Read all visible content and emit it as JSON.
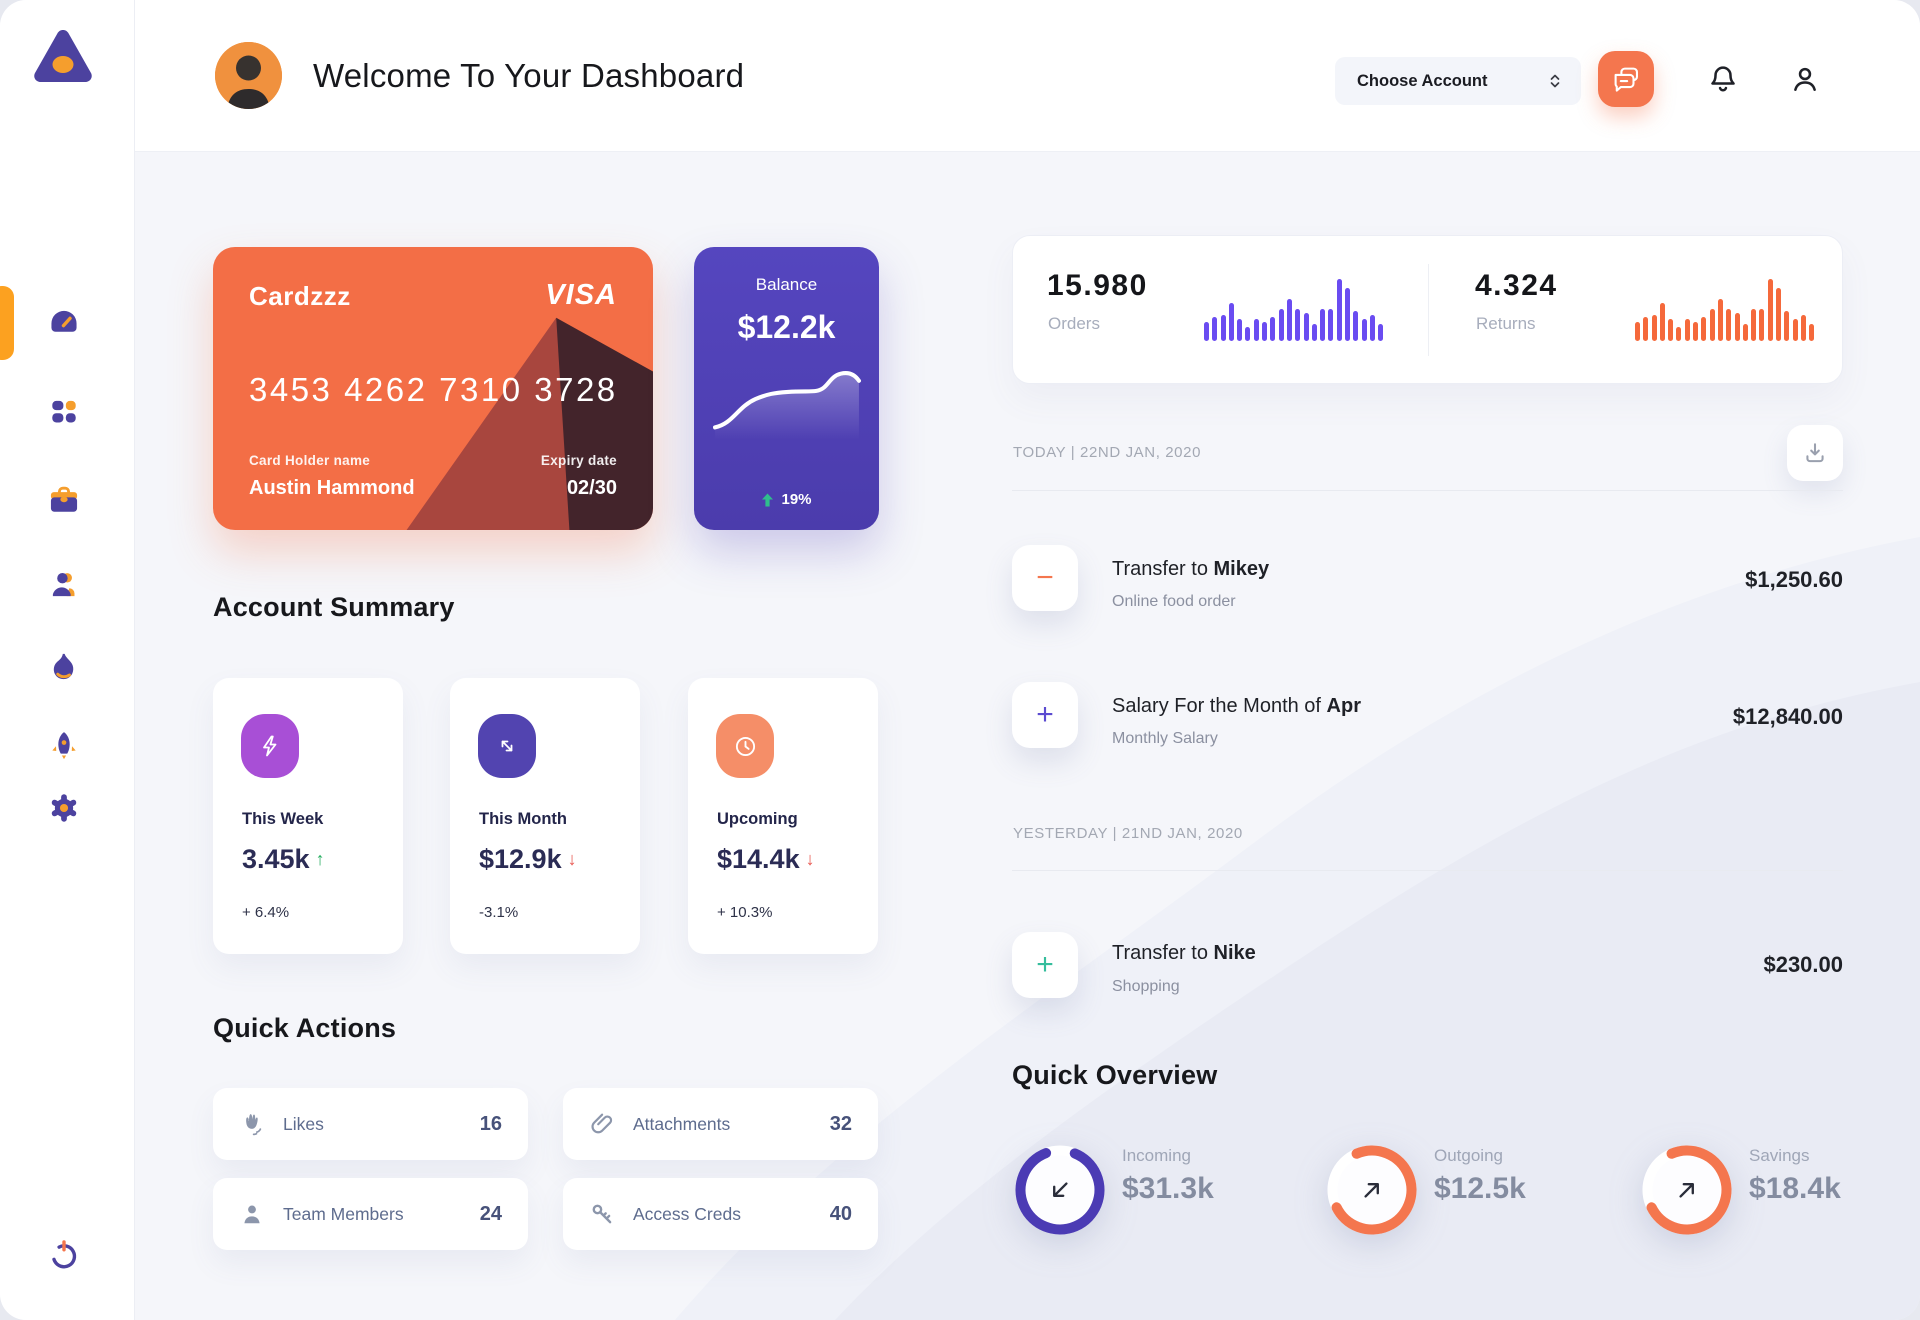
{
  "page": {
    "title": "Welcome To Your Dashboard"
  },
  "header": {
    "account_selector": {
      "label": "Choose Account",
      "icon": "chevron-up-down"
    },
    "actions": {
      "messages_icon": "chat-bubbles",
      "notifications_icon": "bell",
      "profile_icon": "person"
    }
  },
  "sidebar": {
    "logo_icon": "triangle-orb-logo",
    "items": [
      {
        "icon": "gauge-dashboard",
        "active": true
      },
      {
        "icon": "apps-grid",
        "active": false
      },
      {
        "icon": "briefcase",
        "active": false
      },
      {
        "icon": "user",
        "active": false
      },
      {
        "icon": "flame",
        "active": false
      },
      {
        "icon": "rocket",
        "active": false
      },
      {
        "icon": "gear",
        "active": false
      }
    ],
    "power_icon": "power"
  },
  "credit_card": {
    "name": "Cardzzz",
    "brand": "VISA",
    "number": "3453 4262 7310 3728",
    "holder_label": "Card Holder name",
    "holder_name": "Austin Hammond",
    "expiry_label": "Expiry date",
    "expiry_value": "02/30",
    "bg_color": "#F36E46"
  },
  "balance_card": {
    "label": "Balance",
    "value": "$12.2k",
    "delta": "19%",
    "delta_direction": "up",
    "delta_color": "#2FBE8C",
    "bg_color": "#5243B8"
  },
  "stats": {
    "orders": {
      "value": "15.980",
      "label": "Orders",
      "color": "#6A4CF1",
      "bars": [
        30,
        38,
        42,
        62,
        35,
        22,
        35,
        30,
        38,
        52,
        68,
        52,
        45,
        28,
        52,
        52,
        100,
        85,
        48,
        35,
        42,
        28
      ]
    },
    "returns": {
      "value": "4.324",
      "label": "Returns",
      "color": "#F5693B",
      "bars": [
        30,
        38,
        42,
        62,
        35,
        22,
        35,
        30,
        38,
        52,
        68,
        52,
        45,
        28,
        52,
        52,
        100,
        85,
        48,
        35,
        42,
        28
      ]
    }
  },
  "account_summary": {
    "title": "Account Summary",
    "cards": [
      {
        "icon": "lightning-bolt",
        "icon_bg": "#A84FD6",
        "label": "This Week",
        "value": "3.45k",
        "trend": "up",
        "trend_color": "#27AE60",
        "delta": "+ 6.4%"
      },
      {
        "icon": "diagonal-arrows",
        "icon_bg": "#5244B0",
        "label": "This Month",
        "value": "$12.9k",
        "trend": "down",
        "trend_color": "#E8564F",
        "delta": "-3.1%"
      },
      {
        "icon": "clock",
        "icon_bg": "#F58E68",
        "label": "Upcoming",
        "value": "$14.4k",
        "trend": "down",
        "trend_color": "#E8564F",
        "delta": "+ 10.3%"
      }
    ]
  },
  "quick_actions": {
    "title": "Quick Actions",
    "items": [
      {
        "icon": "waving-hand",
        "label": "Likes",
        "count": "16"
      },
      {
        "icon": "paperclip",
        "label": "Attachments",
        "count": "32"
      },
      {
        "icon": "person",
        "label": "Team Members",
        "count": "24"
      },
      {
        "icon": "key",
        "label": "Access Creds",
        "count": "40"
      }
    ]
  },
  "transactions": {
    "download_icon": "download",
    "groups": [
      {
        "date_label": "TODAY | 22ND JAN, 2020",
        "items": [
          {
            "sign": "minus",
            "sign_color": "#F4764E",
            "title_prefix": "Transfer to ",
            "title_strong": "Mikey",
            "subtitle": "Online food order",
            "amount": "$1,250.60"
          },
          {
            "sign": "plus",
            "sign_color": "#5B4BD0",
            "title_prefix": "Salary For the Month of ",
            "title_strong": "Apr",
            "subtitle": "Monthly Salary",
            "amount": "$12,840.00"
          }
        ]
      },
      {
        "date_label": "YESTERDAY | 21ND JAN, 2020",
        "items": [
          {
            "sign": "plus",
            "sign_color": "#35BD9C",
            "title_prefix": "Transfer to ",
            "title_strong": "Nike",
            "subtitle": "Shopping",
            "amount": "$230.00"
          }
        ]
      }
    ]
  },
  "quick_overview": {
    "title": "Quick Overview",
    "items": [
      {
        "label": "Incoming",
        "value": "$31.3k",
        "arrow": "down-left",
        "ring_color": "#4B3BB4",
        "ring_pct": 0.88,
        "ring_rotate": -68
      },
      {
        "label": "Outgoing",
        "value": "$12.5k",
        "arrow": "up-right",
        "ring_color": "#F4764E",
        "ring_pct": 0.74,
        "ring_rotate": 247
      },
      {
        "label": "Savings",
        "value": "$18.4k",
        "arrow": "up-right",
        "ring_color": "#F4764E",
        "ring_pct": 0.74,
        "ring_rotate": 247
      }
    ]
  },
  "chart_data": [
    {
      "type": "bar",
      "title": "Orders",
      "total_label": "15.980",
      "ylim": [
        0,
        100
      ],
      "color": "#6A4CF1",
      "values": [
        30,
        38,
        42,
        62,
        35,
        22,
        35,
        30,
        38,
        52,
        68,
        52,
        45,
        28,
        52,
        52,
        100,
        85,
        48,
        35,
        42,
        28
      ]
    },
    {
      "type": "bar",
      "title": "Returns",
      "total_label": "4.324",
      "ylim": [
        0,
        100
      ],
      "color": "#F5693B",
      "values": [
        30,
        38,
        42,
        62,
        35,
        22,
        35,
        30,
        38,
        52,
        68,
        52,
        45,
        28,
        52,
        52,
        100,
        85,
        48,
        35,
        42,
        28
      ]
    },
    {
      "type": "line",
      "title": "Balance",
      "total_label": "$12.2k",
      "color": "#FFFFFF",
      "points_pct": [
        10,
        16,
        30,
        46,
        55,
        57,
        58,
        58,
        60,
        76,
        80,
        71
      ]
    },
    {
      "type": "donut",
      "title": "Incoming",
      "value": "$31.3k",
      "pct": 88,
      "color": "#4B3BB4"
    },
    {
      "type": "donut",
      "title": "Outgoing",
      "value": "$12.5k",
      "pct": 74,
      "color": "#F4764E"
    },
    {
      "type": "donut",
      "title": "Savings",
      "value": "$18.4k",
      "pct": 74,
      "color": "#F4764E"
    }
  ]
}
